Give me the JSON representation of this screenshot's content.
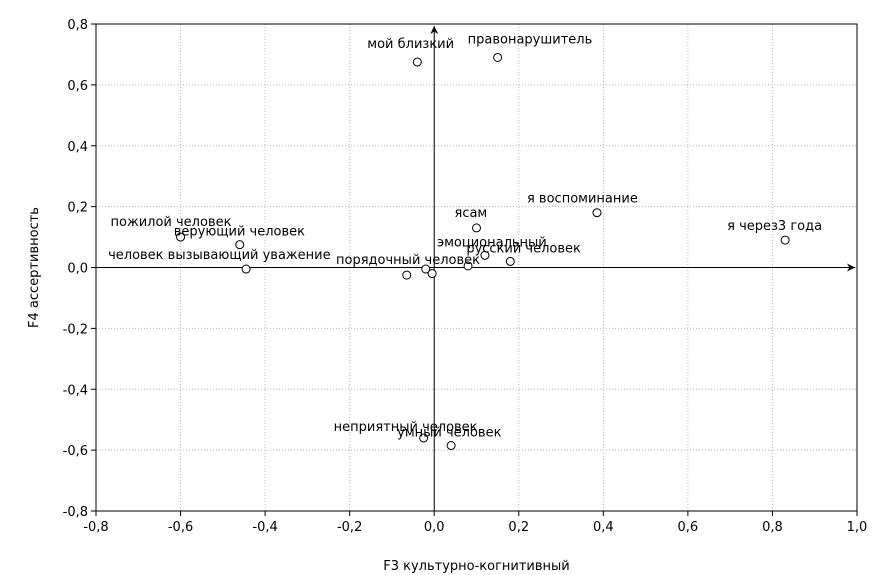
{
  "chart_data": {
    "type": "scatter",
    "title": "",
    "xlabel": "F3 культурно-когнитивный",
    "ylabel": "F4 ассертивность",
    "xlim": [
      -0.8,
      1.0
    ],
    "ylim": [
      -0.8,
      0.8
    ],
    "xticks": [
      "-0,8",
      "-0,6",
      "-0,4",
      "-0,2",
      "0,0",
      "0,2",
      "0,4",
      "0,6",
      "0,8",
      "1,0"
    ],
    "yticks": [
      "-0,8",
      "-0,6",
      "-0,4",
      "-0,2",
      "0,0",
      "0,2",
      "0,4",
      "0,6",
      "0,8"
    ],
    "grid": true,
    "legend": "none",
    "points": [
      {
        "label": "мой близкий",
        "x": -0.04,
        "y": 0.675
      },
      {
        "label": "правонарушитель",
        "x": 0.15,
        "y": 0.69
      },
      {
        "label": "я воспоминание",
        "x": 0.385,
        "y": 0.18
      },
      {
        "label": "я через3 года",
        "x": 0.83,
        "y": 0.09
      },
      {
        "label": "ясам",
        "x": 0.1,
        "y": 0.13
      },
      {
        "label": "эмоциональный",
        "x": 0.12,
        "y": 0.04
      },
      {
        "label": "русский человек",
        "x": 0.18,
        "y": 0.02
      },
      {
        "label": "порядочный человек",
        "x": 0.08,
        "y": 0.005
      },
      {
        "label": "пожилой человек",
        "x": -0.6,
        "y": 0.1
      },
      {
        "label": "верующий человек",
        "x": -0.46,
        "y": 0.075
      },
      {
        "label": "человек вызывающий уважение",
        "x": -0.445,
        "y": -0.005
      },
      {
        "label": "",
        "x": -0.065,
        "y": -0.025
      },
      {
        "label": "",
        "x": -0.02,
        "y": -0.005
      },
      {
        "label": "",
        "x": -0.005,
        "y": -0.02
      },
      {
        "label": "неприятный человек",
        "x": -0.025,
        "y": -0.56
      },
      {
        "label": "умный человек",
        "x": 0.04,
        "y": -0.585
      }
    ]
  }
}
